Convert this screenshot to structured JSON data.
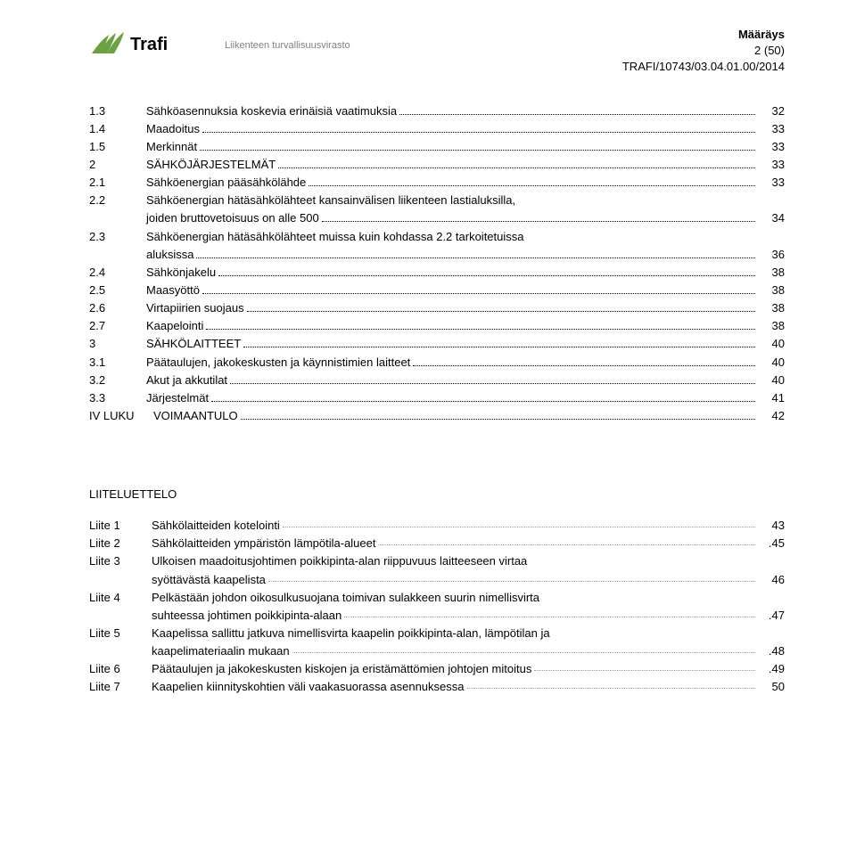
{
  "header": {
    "brand": "Trafi",
    "subtitle": "Liikenteen turvallisuusvirasto",
    "doc_type": "Määräys",
    "page_info": "2 (50)",
    "doc_ref": "TRAFI/10743/03.04.01.00/2014",
    "logo_color": "#69a23f"
  },
  "toc": [
    {
      "num": "1.3",
      "title": "Sähköasennuksia koskevia erinäisiä vaatimuksia",
      "page": "32"
    },
    {
      "num": "1.4",
      "title": "Maadoitus",
      "page": "33"
    },
    {
      "num": "1.5",
      "title": "Merkinnät",
      "page": "33"
    },
    {
      "num": "2",
      "title": "SÄHKÖJÄRJESTELMÄT",
      "page": "33"
    },
    {
      "num": "2.1",
      "title": "Sähköenergian pääsähkölähde",
      "page": "33"
    },
    {
      "num": "2.2",
      "title": "Sähköenergian hätäsähkölähteet kansainvälisen liikenteen lastialuksilla, joiden bruttovetoisuus on alle 500",
      "page": "34",
      "wrap": true
    },
    {
      "num": "2.3",
      "title": "Sähköenergian hätäsähkölähteet muissa kuin kohdassa 2.2 tarkoitetuissa aluksissa",
      "page": "36",
      "wrap": true
    },
    {
      "num": "2.4",
      "title": "Sähkönjakelu",
      "page": "38"
    },
    {
      "num": "2.5",
      "title": "Maasyöttö",
      "page": "38"
    },
    {
      "num": "2.6",
      "title": "Virtapiirien suojaus",
      "page": "38"
    },
    {
      "num": "2.7",
      "title": "Kaapelointi",
      "page": "38"
    },
    {
      "num": "3",
      "title": "SÄHKÖLAITTEET",
      "page": "40"
    },
    {
      "num": "3.1",
      "title": "Päätaulujen, jakokeskusten ja käynnistimien laitteet",
      "page": "40"
    },
    {
      "num": "3.2",
      "title": "Akut ja akkutilat",
      "page": "40"
    },
    {
      "num": "3.3",
      "title": "Järjestelmät",
      "page": "41"
    },
    {
      "num": "IV LUKU",
      "title": "VOIMAANTULO",
      "page": "42",
      "luku": true
    }
  ],
  "appendix_heading": "LIITELUETTELO",
  "appendix": [
    {
      "label": "Liite 1",
      "lines": [
        {
          "text": "Sähkölaitteiden kotelointi",
          "page": "43"
        }
      ]
    },
    {
      "label": "Liite 2",
      "lines": [
        {
          "text": "Sähkölaitteiden ympäristön lämpötila-alueet",
          "page": ".45"
        }
      ]
    },
    {
      "label": "Liite 3",
      "lines": [
        {
          "text": "Ulkoisen maadoitusjohtimen poikkipinta-alan riippuvuus laitteeseen virtaa"
        },
        {
          "text": "syöttävästä kaapelista",
          "page": "46"
        }
      ]
    },
    {
      "label": "Liite 4",
      "lines": [
        {
          "text": "Pelkästään johdon oikosulkusuojana toimivan sulakkeen suurin nimellisvirta"
        },
        {
          "text": "suhteessa johtimen poikkipinta-alaan",
          "page": ".47"
        }
      ]
    },
    {
      "label": "Liite 5",
      "lines": [
        {
          "text": "Kaapelissa sallittu jatkuva nimellisvirta kaapelin poikkipinta-alan, lämpötilan ja"
        },
        {
          "text": "kaapelimateriaalin mukaan",
          "page": ".48"
        }
      ]
    },
    {
      "label": "Liite 6",
      "lines": [
        {
          "text": "Päätaulujen ja jakokeskusten kiskojen ja eristämättömien johtojen mitoitus",
          "page": ".49"
        }
      ]
    },
    {
      "label": "Liite 7",
      "lines": [
        {
          "text": "Kaapelien kiinnityskohtien väli vaakasuorassa asennuksessa",
          "page": "50"
        }
      ]
    }
  ]
}
